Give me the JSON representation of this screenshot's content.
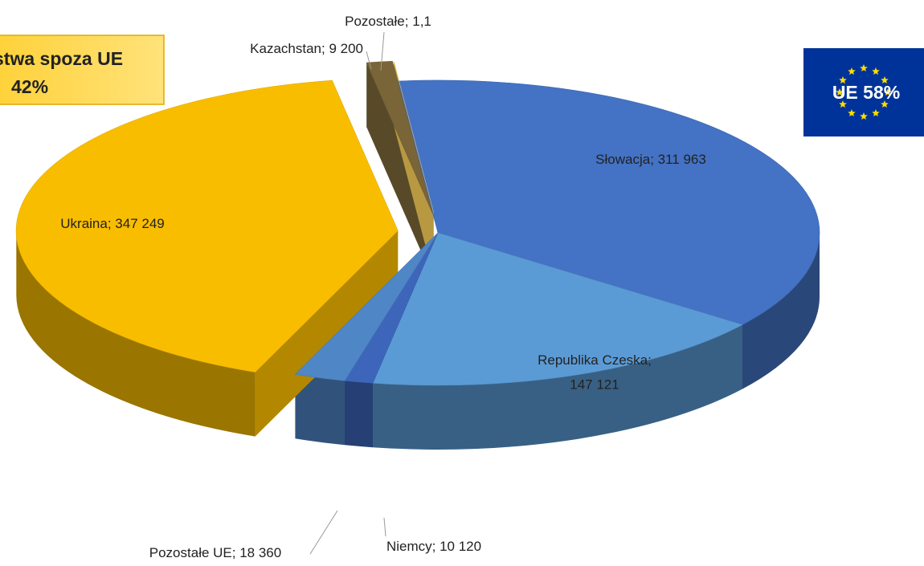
{
  "chart_data": {
    "type": "pie",
    "categories": [
      "Słowacja",
      "Republika Czeska",
      "Niemcy",
      "Pozostałe UE",
      "Ukraina",
      "Kazachstan",
      "Pozostałe"
    ],
    "values": [
      311963,
      147121,
      10120,
      18360,
      347249,
      9200,
      1.1
    ],
    "value_labels": [
      "311 963",
      "147 121",
      "10 120",
      "18 360",
      "347 249",
      "9 200",
      "1,1"
    ],
    "label_separator": "; ",
    "colors": [
      "#4472c4",
      "#5b9bd5",
      "#3d66bb",
      "#4f86c6",
      "#f9bd00",
      "#7a6538",
      "#ffd45c"
    ],
    "annotations": {
      "non_eu_title": "stwa spoza UE",
      "non_eu_share": "42%",
      "eu_badge": "UE 58%"
    }
  }
}
